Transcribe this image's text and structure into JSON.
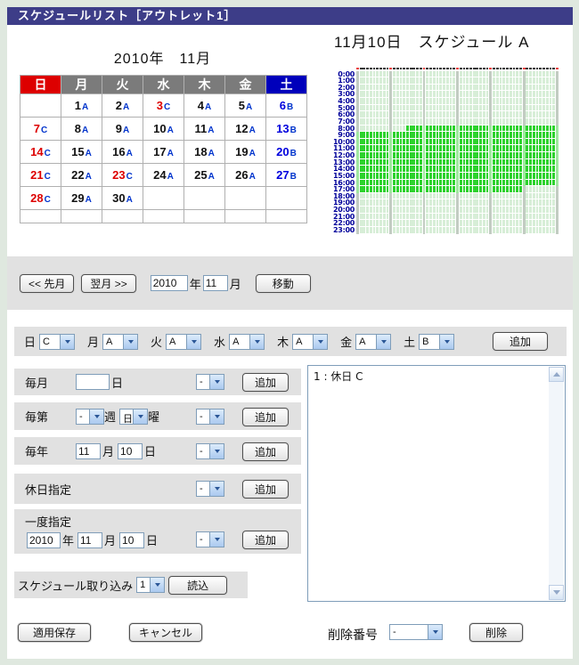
{
  "page": {
    "title": "スケジュールリスト［アウトレット1］"
  },
  "calendar": {
    "title": "2010年　11月",
    "day_headers": [
      {
        "label": "日",
        "bg": "#dd0000"
      },
      {
        "label": "月",
        "bg": "#7b7b7b"
      },
      {
        "label": "火",
        "bg": "#7b7b7b"
      },
      {
        "label": "水",
        "bg": "#7b7b7b"
      },
      {
        "label": "木",
        "bg": "#7b7b7b"
      },
      {
        "label": "金",
        "bg": "#7b7b7b"
      },
      {
        "label": "土",
        "bg": "#0000bb"
      }
    ],
    "weeks": [
      [
        {
          "day": "",
          "sched": "",
          "color": "k"
        },
        {
          "day": "1",
          "sched": "A",
          "color": "k"
        },
        {
          "day": "2",
          "sched": "A",
          "color": "k"
        },
        {
          "day": "3",
          "sched": "C",
          "color": "r"
        },
        {
          "day": "4",
          "sched": "A",
          "color": "k"
        },
        {
          "day": "5",
          "sched": "A",
          "color": "k"
        },
        {
          "day": "6",
          "sched": "B",
          "color": "b"
        }
      ],
      [
        {
          "day": "7",
          "sched": "C",
          "color": "r"
        },
        {
          "day": "8",
          "sched": "A",
          "color": "k"
        },
        {
          "day": "9",
          "sched": "A",
          "color": "k"
        },
        {
          "day": "10",
          "sched": "A",
          "color": "k"
        },
        {
          "day": "11",
          "sched": "A",
          "color": "k"
        },
        {
          "day": "12",
          "sched": "A",
          "color": "k"
        },
        {
          "day": "13",
          "sched": "B",
          "color": "b"
        }
      ],
      [
        {
          "day": "14",
          "sched": "C",
          "color": "r"
        },
        {
          "day": "15",
          "sched": "A",
          "color": "k"
        },
        {
          "day": "16",
          "sched": "A",
          "color": "k"
        },
        {
          "day": "17",
          "sched": "A",
          "color": "k"
        },
        {
          "day": "18",
          "sched": "A",
          "color": "k"
        },
        {
          "day": "19",
          "sched": "A",
          "color": "k"
        },
        {
          "day": "20",
          "sched": "B",
          "color": "b"
        }
      ],
      [
        {
          "day": "21",
          "sched": "C",
          "color": "r"
        },
        {
          "day": "22",
          "sched": "A",
          "color": "k"
        },
        {
          "day": "23",
          "sched": "C",
          "color": "r"
        },
        {
          "day": "24",
          "sched": "A",
          "color": "k"
        },
        {
          "day": "25",
          "sched": "A",
          "color": "k"
        },
        {
          "day": "26",
          "sched": "A",
          "color": "k"
        },
        {
          "day": "27",
          "sched": "B",
          "color": "b"
        }
      ],
      [
        {
          "day": "28",
          "sched": "C",
          "color": "r"
        },
        {
          "day": "29",
          "sched": "A",
          "color": "k"
        },
        {
          "day": "30",
          "sched": "A",
          "color": "k"
        },
        {
          "day": "",
          "sched": "",
          "color": "k"
        },
        {
          "day": "",
          "sched": "",
          "color": "k"
        },
        {
          "day": "",
          "sched": "",
          "color": "k"
        },
        {
          "day": "",
          "sched": "",
          "color": "k"
        }
      ],
      [
        {
          "day": "",
          "sched": "",
          "color": "k"
        },
        {
          "day": "",
          "sched": "",
          "color": "k"
        },
        {
          "day": "",
          "sched": "",
          "color": "k"
        },
        {
          "day": "",
          "sched": "",
          "color": "k"
        },
        {
          "day": "",
          "sched": "",
          "color": "k"
        },
        {
          "day": "",
          "sched": "",
          "color": "k"
        },
        {
          "day": "",
          "sched": "",
          "color": "k"
        }
      ]
    ]
  },
  "schedule_view": {
    "title": "11月10日　スケジュール A",
    "hours": [
      "0:00",
      "1:00",
      "2:00",
      "3:00",
      "4:00",
      "5:00",
      "6:00",
      "7:00",
      "8:00",
      "9:00",
      "10:00",
      "11:00",
      "12:00",
      "13:00",
      "14:00",
      "15:00",
      "16:00",
      "17:00",
      "18:00",
      "19:00",
      "20:00",
      "21:00",
      "22:00",
      "23:00"
    ],
    "active_start": "8:15",
    "active_end": "17:50",
    "active_start_min": 495,
    "active_end_min": 1070
  },
  "chart_data": {
    "type": "heatmap",
    "title": "11月10日　スケジュール A",
    "rows": [
      "0:00",
      "1:00",
      "2:00",
      "3:00",
      "4:00",
      "5:00",
      "6:00",
      "7:00",
      "8:00",
      "9:00",
      "10:00",
      "11:00",
      "12:00",
      "13:00",
      "14:00",
      "15:00",
      "16:00",
      "17:00",
      "18:00",
      "19:00",
      "20:00",
      "21:00",
      "22:00",
      "23:00"
    ],
    "minutes_per_cell": 1,
    "cells_per_row": 60,
    "gridline_every_minutes": 10,
    "active_ranges": [
      {
        "start": "8:15",
        "end": "17:50"
      }
    ],
    "colors": {
      "active": "#2cd22c",
      "inactive": "#d7eed7",
      "gridline": "#c2ccc2",
      "label": "#00009a"
    }
  },
  "nav": {
    "prev_label": "<< 先月",
    "next_label": "翌月 >>",
    "year_value": "2010",
    "year_suffix": "年",
    "month_value": "11",
    "month_suffix": "月",
    "go_label": "移動"
  },
  "week_selects": {
    "items": [
      {
        "label": "日",
        "value": "C"
      },
      {
        "label": "月",
        "value": "A"
      },
      {
        "label": "火",
        "value": "A"
      },
      {
        "label": "水",
        "value": "A"
      },
      {
        "label": "木",
        "value": "A"
      },
      {
        "label": "金",
        "value": "A"
      },
      {
        "label": "土",
        "value": "B"
      }
    ],
    "add_label": "追加"
  },
  "form_rows": {
    "monthly": {
      "label": "毎月",
      "day_value": "",
      "day_suffix": "日",
      "priority_value": "-",
      "add_label": "追加"
    },
    "nth_week": {
      "label": "毎第",
      "week_value": "-",
      "week_suffix": "週",
      "dow_value": "日",
      "dow_suffix": "曜",
      "priority_value": "-",
      "add_label": "追加"
    },
    "yearly": {
      "label": "毎年",
      "month_value": "11",
      "month_suffix": "月",
      "day_value": "10",
      "day_suffix": "日",
      "priority_value": "-",
      "add_label": "追加"
    },
    "holiday": {
      "label": "休日指定",
      "priority_value": "-",
      "add_label": "追加"
    },
    "once": {
      "label": "一度指定",
      "year_value": "2010",
      "year_suffix": "年",
      "month_value": "11",
      "month_suffix": "月",
      "day_value": "10",
      "day_suffix": "日",
      "priority_value": "-",
      "add_label": "追加"
    },
    "import": {
      "label": "スケジュール取り込み",
      "value": "1",
      "load_label": "読込"
    }
  },
  "schedule_list": {
    "items": [
      "1 : 休日 C"
    ]
  },
  "footer": {
    "save_label": "適用保存",
    "cancel_label": "キャンセル",
    "delete_label": "削除番号",
    "delete_value": "-",
    "delete_btn_label": "削除"
  },
  "colors": {
    "frame_bg": "#dfe8df",
    "titlebar_bg": "#3d3d88",
    "band_bg": "#e1e1e1",
    "sunday_header": "#dd0000",
    "saturday_header": "#0000bb",
    "weekday_header": "#7b7b7b",
    "active_green": "#2cd22c",
    "inactive_green": "#d7eed7",
    "select_border": "#7f9db9"
  }
}
